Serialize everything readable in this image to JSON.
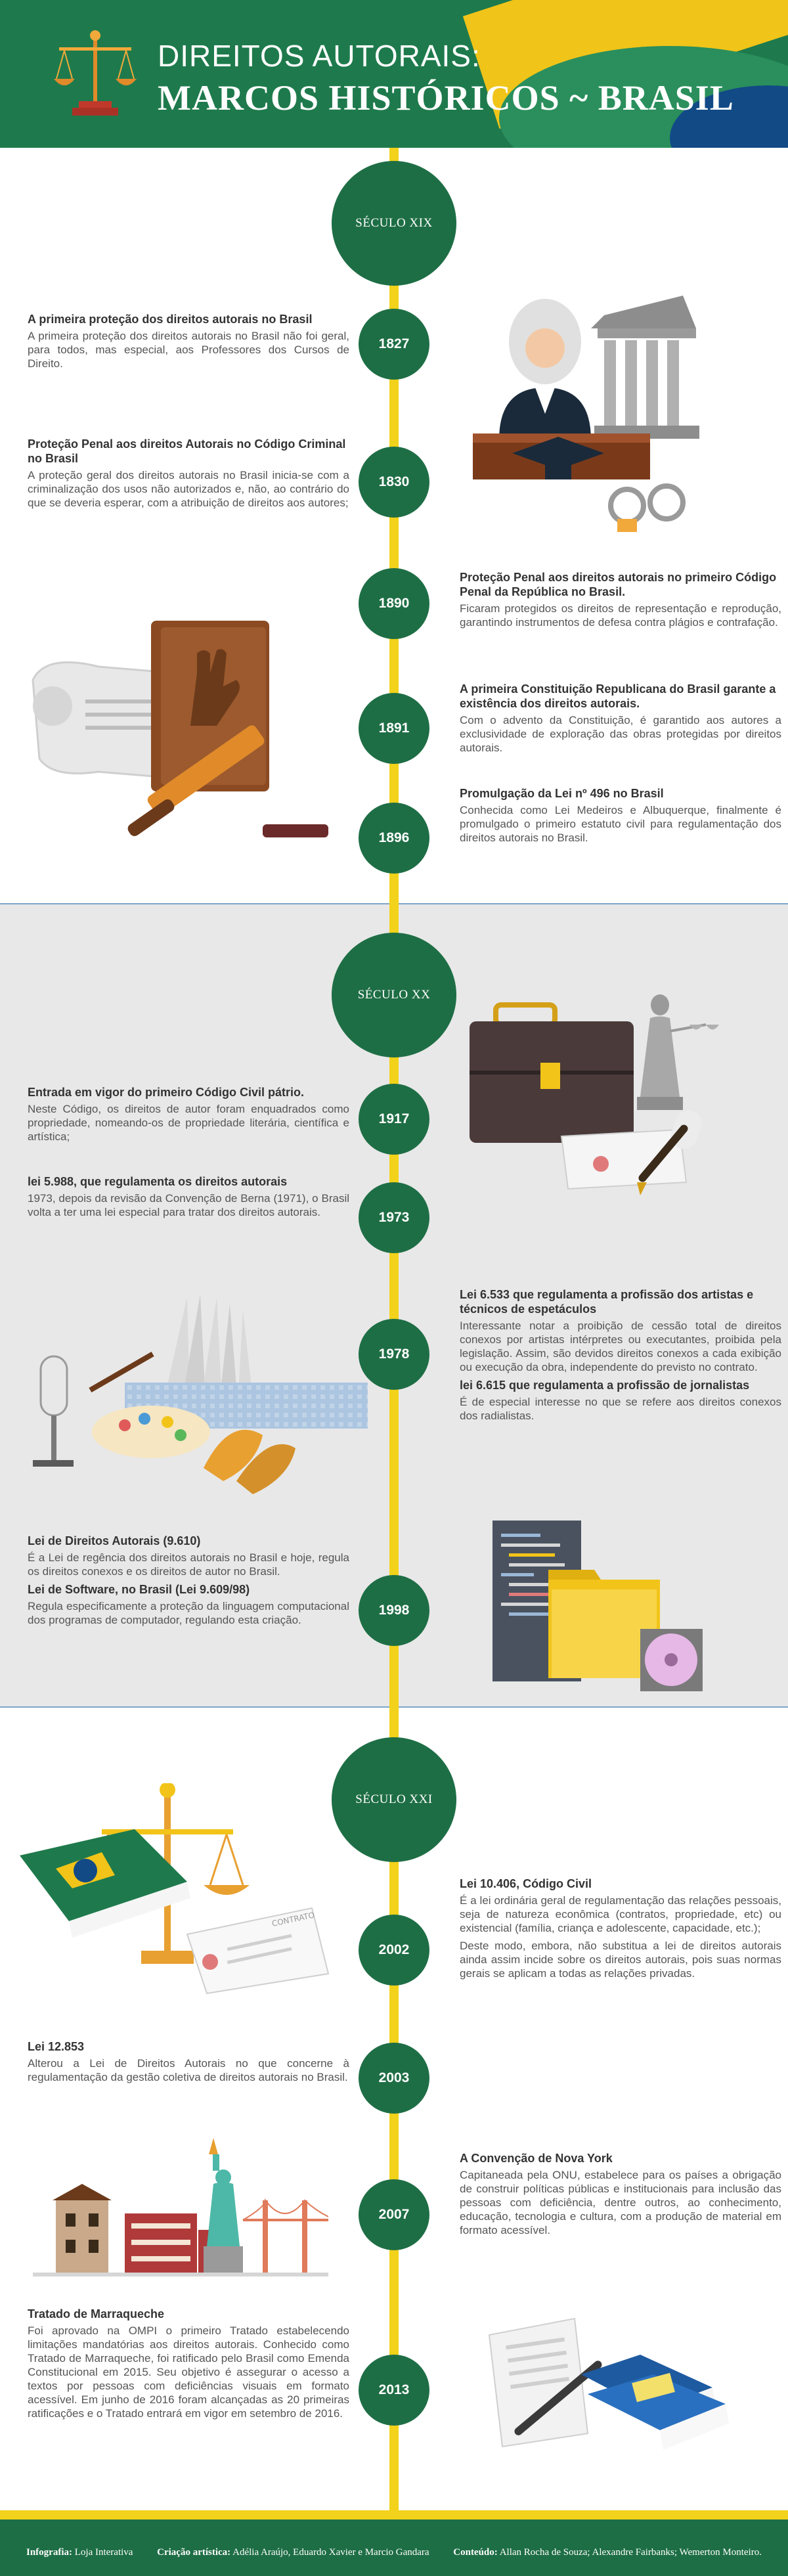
{
  "header": {
    "title_line1": "DIREITOS AUTORAIS:",
    "title_line2": "MARCOS HISTÓRICOS ~ BRASIL"
  },
  "centuries": [
    "SÉCULO XIX",
    "SÉCULO XX",
    "SÉCULO XXI"
  ],
  "years": [
    "1827",
    "1830",
    "1890",
    "1891",
    "1896",
    "1917",
    "1973",
    "1978",
    "1998",
    "2002",
    "2003",
    "2007",
    "2013"
  ],
  "events": {
    "e1827": {
      "title": "A primeira proteção dos direitos autorais no Brasil",
      "body": "A primeira proteção dos direitos autorais no Brasil não foi geral, para todos, mas especial, aos Professores dos Cursos de Direito."
    },
    "e1830": {
      "title": "Proteção Penal aos direitos Autorais no Código Criminal no Brasil",
      "body": "A proteção geral dos direitos autorais no Brasil inicia-se com a criminalização dos usos não autorizados e, não, ao contrário do que se deveria esperar, com a atribuição de direitos aos autores;"
    },
    "e1890": {
      "title": "Proteção Penal aos direitos autorais no primeiro Código Penal da República no Brasil.",
      "body": "Ficaram protegidos os direitos de representação e reprodução, garantindo instrumentos de defesa contra plágios e contrafação."
    },
    "e1891": {
      "title": "A primeira Constituição Republicana do Brasil garante a existência dos direitos autorais.",
      "body": "Com o advento da Constituição, é garantido aos autores a exclusividade de exploração das obras protegidas por direitos autorais."
    },
    "e1896": {
      "title": "Promulgação da Lei nº 496 no Brasil",
      "body": "Conhecida como Lei Medeiros e Albuquerque, finalmente é promulgado o primeiro estatuto civil para regulamentação dos direitos autorais no Brasil."
    },
    "e1917": {
      "title": "Entrada em vigor do primeiro Código Civil pátrio.",
      "body": "Neste Código, os direitos de autor foram enquadrados como propriedade, nomeando-os de propriedade literária, científica e artística;"
    },
    "e1973": {
      "title": "lei 5.988, que regulamenta os direitos autorais",
      "body": "1973, depois da revisão da Convenção de Berna (1971), o Brasil volta a ter uma lei especial para tratar dos direitos autorais."
    },
    "e1978a": {
      "title": "Lei 6.533 que regulamenta a profissão dos artistas e técnicos de espetáculos",
      "body": "Interessante notar a proibição de cessão total de direitos conexos por artistas intérpretes ou executantes, proibida pela legislação. Assim, são devidos direitos conexos a cada exibição ou execução da obra, independente do previsto no contrato."
    },
    "e1978b": {
      "title": "lei 6.615 que regulamenta a profissão de jornalistas",
      "body": "É de especial interesse no que se refere aos direitos conexos dos radialistas."
    },
    "e1998a": {
      "title": "Lei de Direitos Autorais (9.610)",
      "body": "É a Lei de regência dos direitos autorais no Brasil e hoje, regula os direitos conexos e os direitos de autor no Brasil."
    },
    "e1998b": {
      "title": "Lei de Software, no Brasil (Lei 9.609/98)",
      "body": "Regula especificamente a proteção da linguagem computacional dos programas de computador, regulando esta criação."
    },
    "e2002": {
      "title": "Lei 10.406, Código Civil",
      "body1": "É a lei ordinária geral de regulamentação das relações pessoais, seja de natureza econômica (contratos, propriedade, etc) ou existencial (família, criança e adolescente, capacidade, etc.);",
      "body2": "Deste modo, embora, não substitua a lei de direitos autorais ainda assim incide sobre os direitos autorais, pois suas normas gerais se aplicam a todas as relações privadas."
    },
    "e2003": {
      "title": "Lei 12.853",
      "body": "Alterou a Lei de Direitos Autorais no que concerne à regulamentação da gestão coletiva de direitos autorais no Brasil."
    },
    "e2007": {
      "title": "A Convenção de Nova York",
      "body": "Capitaneada pela ONU, estabelece para os países a obrigação de construir políticas públicas e institucionais para inclusão das pessoas com deficiência, dentre outros, ao conhecimento, educação, tecnologia e cultura, com a produção de material em formato acessível."
    },
    "e2013": {
      "title": "Tratado de Marraqueche",
      "body": "Foi aprovado na OMPI o primeiro Tratado estabelecendo limitações mandatórias aos direitos autorais. Conhecido como Tratado de Marraqueche, foi ratificado pelo Brasil como Emenda Constitucional em 2015. Seu objetivo é assegurar o acesso a textos por pessoas com deficiências visuais em formato acessível. Em junho de 2016 foram alcançadas as 20 primeiras ratificações e o Tratado entrará em vigor em setembro de 2016."
    }
  },
  "illustration_text": {
    "contract_label": "CONTRATO"
  },
  "footer": {
    "infographic_label": "Infografia:",
    "infographic_value": "Loja Interativa",
    "art_label": "Criação artística:",
    "art_value": "Adélia Araújo, Eduardo Xavier e Marcio Gandara",
    "content_label": "Conteúdo:",
    "content_value": "Allan Rocha de Souza; Alexandre Fairbanks; Wemerton Monteiro."
  },
  "colors": {
    "green": "#1e6e45",
    "yellow": "#f2d21a",
    "blue": "#124a86"
  }
}
